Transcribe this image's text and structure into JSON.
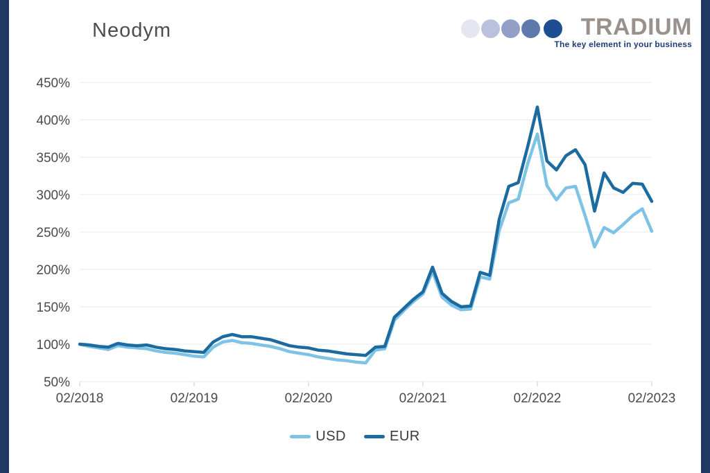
{
  "page": {
    "title": "Neodym"
  },
  "frame": {
    "bar_color": "#1F3864"
  },
  "logo": {
    "brand": "TRADIUM",
    "tagline": "The key element in your business",
    "brand_color": "#9B918C",
    "tagline_color": "#1E3C78",
    "circle_colors": [
      "#E4E7F1",
      "#B9C1DC",
      "#92A0C8",
      "#5F79AC",
      "#1E4D91"
    ]
  },
  "chart_data": {
    "type": "line",
    "title": "Neodym",
    "xlabel": "",
    "ylabel": "",
    "x_unit": "month",
    "x_range_note": "monthly points from 02/2018 to 02/2023",
    "ylim": [
      50,
      450
    ],
    "grid": "on",
    "grid_color": "#E8E8E8",
    "tick_color": "#CCCCCC",
    "legend_position": "bottom",
    "x_ticks": [
      {
        "index": 0,
        "label": "02/2018"
      },
      {
        "index": 12,
        "label": "02/2019"
      },
      {
        "index": 24,
        "label": "02/2020"
      },
      {
        "index": 36,
        "label": "02/2021"
      },
      {
        "index": 48,
        "label": "02/2022"
      },
      {
        "index": 60,
        "label": "02/2023"
      }
    ],
    "y_ticks": [
      {
        "value": 50,
        "label": "50%"
      },
      {
        "value": 100,
        "label": "100%"
      },
      {
        "value": 150,
        "label": "150%"
      },
      {
        "value": 200,
        "label": "200%"
      },
      {
        "value": 250,
        "label": "250%"
      },
      {
        "value": 300,
        "label": "300%"
      },
      {
        "value": 350,
        "label": "350%"
      },
      {
        "value": 400,
        "label": "400%"
      },
      {
        "value": 450,
        "label": "450%"
      }
    ],
    "series": [
      {
        "name": "USD",
        "color": "#7EC3E6",
        "values": [
          100,
          97,
          95,
          93,
          98,
          96,
          95,
          94,
          91,
          89,
          88,
          86,
          84,
          83,
          96,
          103,
          105,
          102,
          101,
          99,
          97,
          94,
          90,
          88,
          86,
          83,
          81,
          79,
          78,
          76,
          75,
          92,
          94,
          132,
          145,
          157,
          167,
          197,
          163,
          152,
          146,
          147,
          190,
          187,
          252,
          289,
          294,
          342,
          381,
          312,
          293,
          309,
          311,
          272,
          230,
          256,
          249,
          260,
          272,
          281,
          251
        ]
      },
      {
        "name": "EUR",
        "color": "#1C6BA0",
        "values": [
          100,
          99,
          97,
          96,
          101,
          99,
          98,
          99,
          96,
          94,
          93,
          91,
          90,
          89,
          103,
          110,
          113,
          110,
          110,
          108,
          106,
          102,
          98,
          96,
          95,
          92,
          91,
          89,
          87,
          86,
          85,
          96,
          97,
          136,
          148,
          160,
          170,
          203,
          168,
          157,
          150,
          151,
          196,
          192,
          267,
          311,
          316,
          365,
          417,
          345,
          333,
          352,
          360,
          340,
          278,
          329,
          309,
          303,
          315,
          314,
          291
        ]
      }
    ]
  },
  "legend": {
    "items": [
      {
        "label": "USD",
        "color": "#7EC3E6"
      },
      {
        "label": "EUR",
        "color": "#1C6BA0"
      }
    ]
  }
}
